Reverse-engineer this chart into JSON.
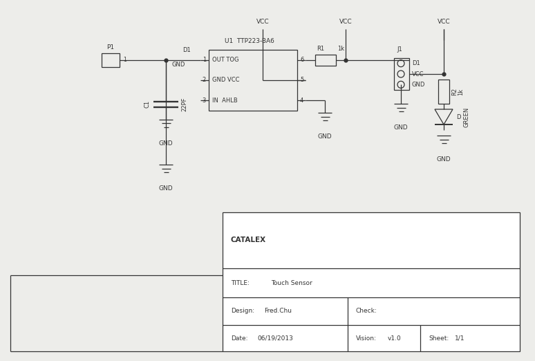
{
  "bg_color": "#ededea",
  "line_color": "#333333",
  "table_data": {
    "company": "CATALEX",
    "title_label": "TITLE:",
    "title_value": "Touch Sensor",
    "design_label": "Design:",
    "design_value": "Fred.Chu",
    "check_label": "Check:",
    "date_label": "Date:",
    "date_value": "06/19/2013",
    "vision_label": "Vision:",
    "vision_value": "v1.0",
    "sheet_label": "Sheet:",
    "sheet_value": "1/1"
  },
  "font_size": 6.5
}
